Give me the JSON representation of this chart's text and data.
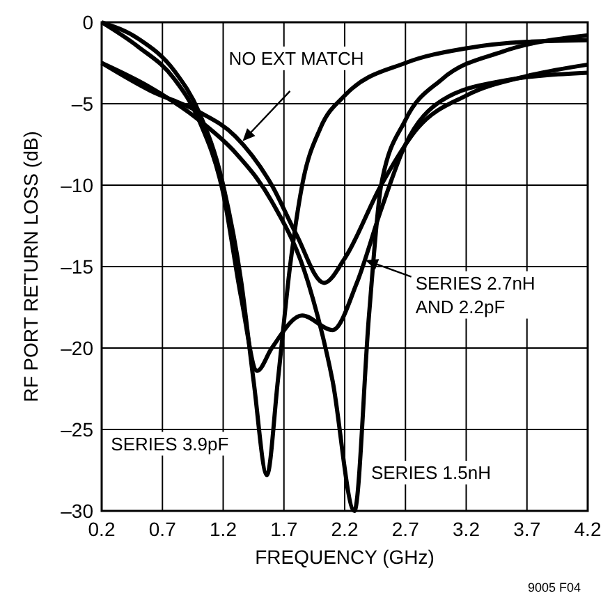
{
  "chart_data": {
    "type": "line",
    "xlabel": "FREQUENCY (GHz)",
    "ylabel": "RF PORT RETURN LOSS (dB)",
    "xlim": [
      0.2,
      4.2
    ],
    "xticks": [
      0.2,
      0.7,
      1.2,
      1.7,
      2.2,
      2.7,
      3.2,
      3.7,
      4.2
    ],
    "ylim": [
      -30,
      0
    ],
    "yticks": [
      {
        "value": -30,
        "label": "–30"
      },
      {
        "value": -25,
        "label": "–25"
      },
      {
        "value": -20,
        "label": "–20"
      },
      {
        "value": -15,
        "label": "–15"
      },
      {
        "value": -10,
        "label": "–10"
      },
      {
        "value": -5,
        "label": "–5"
      },
      0
    ],
    "grid": true,
    "marker": "none",
    "line_style": "solid",
    "series": [
      {
        "color": "#000000",
        "x": [
          0.2,
          0.6,
          1.0,
          1.3,
          1.6,
          1.8,
          2.03,
          2.2,
          2.5,
          2.8,
          3.2,
          3.7,
          4.2
        ],
        "values": [
          -2.5,
          -4.2,
          -5.5,
          -7,
          -10,
          -13,
          -16,
          -14.5,
          -10,
          -6.5,
          -4.5,
          -3.3,
          -2.6
        ]
      },
      {
        "color": "#000000",
        "x": [
          0.2,
          0.5,
          0.8,
          1.0,
          1.2,
          1.35,
          1.48,
          1.6,
          1.85,
          2.1,
          2.3,
          2.5,
          2.7,
          3.0,
          3.5,
          4.2
        ],
        "values": [
          0,
          -1.5,
          -3.5,
          -6,
          -10.5,
          -17,
          -21.4,
          -20,
          -18,
          -18.9,
          -16,
          -11.5,
          -7.5,
          -4.8,
          -3.6,
          -3.1
        ]
      },
      {
        "color": "#000000",
        "x": [
          0.2,
          0.5,
          0.8,
          1.0,
          1.2,
          1.35,
          1.45,
          1.56,
          1.65,
          1.75,
          1.85,
          2.0,
          2.2,
          2.7,
          3.2,
          3.7,
          4.2
        ],
        "values": [
          0,
          -1,
          -3,
          -5.5,
          -10,
          -16,
          -22,
          -27.8,
          -22,
          -15,
          -10,
          -6.5,
          -4.5,
          -2.5,
          -1.6,
          -1.2,
          -1.1
        ]
      },
      {
        "color": "#000000",
        "x": [
          0.2,
          0.6,
          1.0,
          1.3,
          1.6,
          1.9,
          2.1,
          2.28,
          2.4,
          2.5,
          2.7,
          3.0,
          3.5,
          4.2
        ],
        "values": [
          -2.5,
          -4,
          -6,
          -8,
          -11,
          -16,
          -22,
          -30,
          -18,
          -10,
          -6,
          -3.5,
          -1.8,
          -0.8
        ]
      }
    ],
    "annotations": [
      {
        "text": "NO EXT MATCH",
        "x": 1.36,
        "y": -7.3
      },
      {
        "text": "SERIES 2.7nH AND 2.2pF",
        "x": 2.37,
        "y": -14.6
      },
      {
        "text": "SERIES 3.9pF",
        "x": 1.56,
        "y": -27.8
      },
      {
        "text": "SERIES 1.5nH",
        "x": 2.28,
        "y": -30
      },
      "9005 F04"
    ]
  }
}
